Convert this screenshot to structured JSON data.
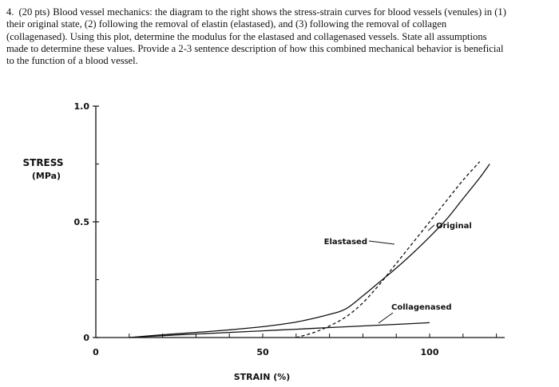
{
  "question": {
    "number": "4.",
    "points": "(20 pts)",
    "text": "Blood vessel mechanics: the diagram to the right shows the stress-strain curves for blood vessels (venules) in (1) their original state, (2) following the removal of elastin (elastased), and (3) following the removal of collagen (collagenased). Using this plot, determine the modulus for the elastased and collagenased vessels. State all assumptions made to determine these values. Provide a 2-3 sentence description of how this combined mechanical behavior is beneficial to the function of a blood vessel."
  },
  "chart_data": {
    "type": "line",
    "ylabel_line1": "STRESS",
    "ylabel_line2": "(MPa)",
    "xlabel": "STRAIN (%)",
    "xlim": [
      0,
      125
    ],
    "ylim": [
      0,
      1.0
    ],
    "x_ticks": [
      0,
      50,
      100
    ],
    "x_tick_labels": [
      "0",
      "50",
      "100"
    ],
    "y_ticks": [
      0,
      0.5,
      1.0
    ],
    "y_tick_labels": [
      "0",
      "0.5",
      "1.0"
    ],
    "series": [
      {
        "name": "Original",
        "style": "solid",
        "color": "#111111",
        "points": [
          [
            10,
            0
          ],
          [
            20,
            0.012
          ],
          [
            30,
            0.022
          ],
          [
            40,
            0.033
          ],
          [
            50,
            0.047
          ],
          [
            60,
            0.067
          ],
          [
            70,
            0.1
          ],
          [
            75,
            0.125
          ],
          [
            80,
            0.18
          ],
          [
            85,
            0.24
          ],
          [
            90,
            0.3
          ],
          [
            95,
            0.365
          ],
          [
            100,
            0.435
          ],
          [
            105,
            0.51
          ],
          [
            110,
            0.6
          ],
          [
            115,
            0.69
          ],
          [
            118,
            0.75
          ]
        ]
      },
      {
        "name": "Elastased",
        "style": "dashed",
        "color": "#111111",
        "points": [
          [
            60,
            0
          ],
          [
            65,
            0.02
          ],
          [
            70,
            0.05
          ],
          [
            75,
            0.09
          ],
          [
            80,
            0.15
          ],
          [
            85,
            0.23
          ],
          [
            90,
            0.32
          ],
          [
            95,
            0.41
          ],
          [
            100,
            0.5
          ],
          [
            105,
            0.59
          ],
          [
            110,
            0.68
          ],
          [
            115,
            0.76
          ]
        ]
      },
      {
        "name": "Collagenased",
        "style": "solid",
        "color": "#111111",
        "points": [
          [
            10,
            0
          ],
          [
            20,
            0.008
          ],
          [
            30,
            0.015
          ],
          [
            40,
            0.022
          ],
          [
            50,
            0.029
          ],
          [
            60,
            0.036
          ],
          [
            70,
            0.043
          ],
          [
            80,
            0.05
          ],
          [
            90,
            0.057
          ],
          [
            100,
            0.064
          ]
        ]
      }
    ],
    "annotations": [
      {
        "text": "Original",
        "series": "Original"
      },
      {
        "text": "Elastased",
        "series": "Elastased"
      },
      {
        "text": "Collagenased",
        "series": "Collagenased"
      }
    ]
  }
}
